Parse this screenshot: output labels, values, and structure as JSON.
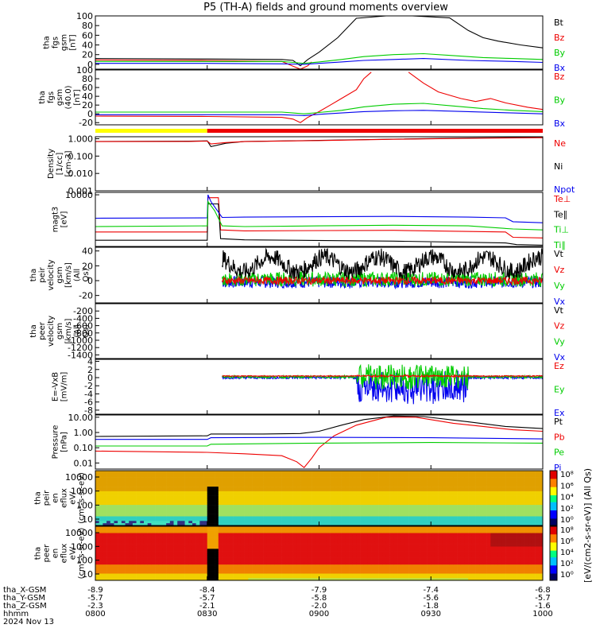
{
  "title": "P5 (TH-A) fields and ground moments overview",
  "colors": {
    "black": "#000000",
    "red": "#ee0000",
    "green": "#00cc00",
    "blue": "#0000ee",
    "yellow": "#ffff00"
  },
  "footer": {
    "row_labels": [
      "tha_X-GSM",
      "tha_Y-GSM",
      "tha_Z-GSM",
      "hhmm",
      "2024 Nov 13"
    ],
    "x_gsm": [
      "-8.9",
      "-8.4",
      "-7.9",
      "-7.4",
      "-6.8"
    ],
    "y_gsm": [
      "-5.7",
      "-5.7",
      "-5.8",
      "-5.6",
      "-5.7"
    ],
    "z_gsm": [
      "-2.3",
      "-2.1",
      "-2.0",
      "-1.8",
      "-1.6"
    ],
    "hhmm": [
      "0800",
      "0830",
      "0900",
      "0930",
      "1000"
    ]
  },
  "colorbar": {
    "label": "[eV/(cm2-s-sr-eV)] (All Qs)",
    "top_ticks": [
      "10⁸",
      "10⁶",
      "10⁴",
      "10²",
      "10⁰"
    ],
    "bottom_ticks": [
      "10⁸",
      "10⁶",
      "10⁴",
      "10²",
      "10⁰"
    ]
  },
  "chart_data": {
    "type": "line",
    "x_time": [
      "0800",
      "0830",
      "0900",
      "0930",
      "1000"
    ],
    "panels": [
      {
        "ylabel": "tha fgs gsm [nT]",
        "yticks": [
          "100",
          "80",
          "60",
          "40",
          "20",
          "0"
        ],
        "ylim": [
          -10,
          100
        ],
        "legend": [
          "Bt",
          "Bz",
          "By",
          "Bx"
        ],
        "series": [
          {
            "name": "Bt",
            "color": "black",
            "t": [
              0,
              30,
              50,
              53,
              55,
              57,
              60,
              65,
              70,
              78,
              85,
              95,
              100,
              104,
              108,
              114,
              120
            ],
            "v": [
              12,
              11,
              10,
              8,
              -3,
              10,
              25,
              55,
              95,
              140,
              140,
              96,
              70,
              55,
              48,
              40,
              34
            ]
          },
          {
            "name": "Bz",
            "color": "red",
            "t": [
              0,
              30,
              50,
              53,
              55,
              57,
              58
            ],
            "v": [
              9,
              8,
              6,
              -4,
              -10,
              -3,
              5
            ]
          },
          {
            "name": "By",
            "color": "green",
            "t": [
              0,
              30,
              50,
              53,
              56,
              60,
              66,
              72,
              80,
              88,
              96,
              104,
              112,
              120
            ],
            "v": [
              6,
              6,
              6,
              4,
              2,
              5,
              10,
              16,
              20,
              22,
              18,
              14,
              12,
              10
            ]
          },
          {
            "name": "Bx",
            "color": "blue",
            "t": [
              0,
              30,
              50,
              56,
              60,
              66,
              72,
              80,
              88,
              100,
              112,
              120
            ],
            "v": [
              2,
              2,
              1,
              0,
              2,
              5,
              8,
              10,
              12,
              8,
              6,
              4
            ]
          }
        ]
      },
      {
        "ylabel": "tha fgs gsm (40.0) [nT]",
        "yticks": [
          "100",
          "80",
          "60",
          "40",
          "20",
          "0",
          "-20"
        ],
        "ylim": [
          -25,
          100
        ],
        "legend": [
          "Bz",
          "By",
          "Bx"
        ],
        "series": [
          {
            "name": "Bz",
            "color": "red",
            "t": [
              0,
              30,
              50,
              53,
              55,
              57,
              60,
              63,
              66,
              70,
              72,
              74,
              84,
              88,
              92,
              98,
              102,
              106,
              110,
              116,
              120
            ],
            "v": [
              -5,
              -6,
              -8,
              -12,
              -20,
              -8,
              5,
              20,
              35,
              55,
              80,
              95,
              95,
              70,
              50,
              35,
              28,
              35,
              25,
              15,
              10
            ],
            "gap": [
              [
                74,
                84
              ]
            ]
          },
          {
            "name": "By",
            "color": "green",
            "t": [
              0,
              30,
              50,
              53,
              56,
              60,
              66,
              72,
              80,
              88,
              96,
              104,
              112,
              120
            ],
            "v": [
              4,
              4,
              4,
              2,
              0,
              3,
              8,
              16,
              22,
              24,
              18,
              12,
              8,
              5
            ]
          },
          {
            "name": "Bx",
            "color": "blue",
            "t": [
              0,
              30,
              50,
              56,
              60,
              66,
              72,
              80,
              88,
              100,
              112,
              120
            ],
            "v": [
              -2,
              -2,
              -2,
              -4,
              -1,
              2,
              5,
              7,
              8,
              5,
              2,
              0
            ]
          }
        ]
      },
      {
        "ylabel": "Density [1/cc] [cm-3]",
        "yticks": [
          "1.000",
          "0.100",
          "0.010",
          "0.001"
        ],
        "log": true,
        "ylim": [
          0.001,
          1.3
        ],
        "legend": [
          "Ne",
          "Ni",
          "Npot"
        ],
        "series": [
          {
            "name": "Ne",
            "color": "black",
            "t": [
              0,
              25,
              30,
              31,
              35,
              40,
              60,
              80,
              100,
              120
            ],
            "v": [
              0.7,
              0.72,
              0.75,
              0.35,
              0.55,
              0.7,
              0.8,
              0.95,
              1.1,
              1.2
            ]
          },
          {
            "name": "Ni",
            "color": "red",
            "t": [
              0,
              25,
              30,
              31,
              35,
              40,
              60,
              80,
              100,
              120
            ],
            "v": [
              0.68,
              0.7,
              0.73,
              0.5,
              0.6,
              0.68,
              0.78,
              0.93,
              1.05,
              1.15
            ]
          }
        ]
      },
      {
        "ylabel": "magt3 [eV]",
        "yticks": [
          "10000"
        ],
        "log": true,
        "ylim": [
          200,
          12000
        ],
        "legend": [
          "Te⊥",
          "Te∥",
          "Ti⊥",
          "Ti∥"
        ],
        "series": [
          {
            "name": "Te⊥",
            "color": "red",
            "t": [
              0,
              30,
              30.2,
              33,
              33.6,
              40,
              80,
              110,
              112,
              120
            ],
            "v": [
              600,
              600,
              8000,
              8000,
              700,
              650,
              680,
              600,
              400,
              380
            ]
          },
          {
            "name": "Te∥",
            "color": "black",
            "t": [
              0,
              30,
              30.2,
              33,
              33.6,
              40,
              80,
              110,
              113,
              120
            ],
            "v": [
              320,
              320,
              5000,
              5000,
              360,
              330,
              300,
              260,
              230,
              220
            ]
          },
          {
            "name": "Ti⊥",
            "color": "blue",
            "t": [
              0,
              30,
              30.2,
              31,
              34,
              40,
              60,
              80,
              100,
              110,
              112,
              120
            ],
            "v": [
              1700,
              1750,
              10000,
              6000,
              1800,
              1850,
              1900,
              1950,
              1850,
              1750,
              1300,
              1200
            ]
          },
          {
            "name": "Ti∥",
            "color": "green",
            "t": [
              0,
              30,
              30.2,
              32,
              34,
              40,
              60,
              80,
              100,
              112,
              120
            ],
            "v": [
              900,
              950,
              6000,
              3000,
              950,
              900,
              950,
              1000,
              950,
              750,
              700
            ]
          }
        ]
      },
      {
        "ylabel": "tha peir velocity gsm [km/s] (All Qs)",
        "yticks": [
          "40",
          "20",
          "0",
          "-20"
        ],
        "ylim": [
          -30,
          45
        ],
        "legend": [
          "Vt",
          "Vz",
          "Vy",
          "Vx"
        ],
        "noisy": true,
        "start": 34,
        "series": [
          {
            "name": "Vx",
            "color": "blue",
            "base": -2,
            "amp": 8
          },
          {
            "name": "Vy",
            "color": "green",
            "base": 2,
            "amp": 10
          },
          {
            "name": "Vt",
            "color": "black",
            "base": 22,
            "amp": 12,
            "wave": 10
          },
          {
            "name": "Vz",
            "color": "red",
            "base": 0,
            "amp": 5
          }
        ]
      },
      {
        "ylabel": "tha peer velocity gsm [km/s] (All Qs)",
        "yticks": [
          "-200",
          "-400",
          "-600",
          "-800",
          "-1000",
          "-1200",
          "-1400"
        ],
        "ylim": [
          -1500,
          0
        ],
        "legend": [
          "Vt",
          "Vz",
          "Vy",
          "Vx"
        ],
        "series": []
      },
      {
        "ylabel": "E=-VxB [mV/m]",
        "yticks": [
          "4",
          "2",
          "0",
          "-2",
          "-4",
          "-6",
          "-8"
        ],
        "ylim": [
          -9,
          4.5
        ],
        "legend": [
          "Ez",
          "Ey",
          "Ex"
        ],
        "noisy": true,
        "start": 34,
        "series": [
          {
            "name": "Ex",
            "color": "blue",
            "base": 0,
            "amp": 0.3,
            "burst": 4
          },
          {
            "name": "Ey",
            "color": "green",
            "base": 0.2,
            "amp": 0.3,
            "burst": 3
          },
          {
            "name": "Ez",
            "color": "red",
            "base": 0.4,
            "amp": 0.1,
            "burst": 0.2
          }
        ]
      },
      {
        "ylabel": "Pressure [nPa]",
        "yticks": [
          "10.00",
          "1.00",
          "0.10",
          "0.01"
        ],
        "log": true,
        "ylim": [
          0.004,
          14
        ],
        "legend": [
          "Pt",
          "Pb",
          "Pe",
          "Pi"
        ],
        "series": [
          {
            "name": "Pt",
            "color": "black",
            "t": [
              0,
              30,
              31,
              45,
              55,
              60,
              66,
              72,
              80,
              88,
              100,
              110,
              120
            ],
            "v": [
              0.55,
              0.6,
              0.8,
              0.8,
              0.85,
              1.2,
              3,
              7,
              12,
              11,
              5,
              2.5,
              1.8
            ]
          },
          {
            "name": "Pb",
            "color": "red",
            "t": [
              0,
              30,
              40,
              50,
              54,
              56,
              58,
              60,
              64,
              70,
              78,
              86,
              96,
              104,
              112,
              120
            ],
            "v": [
              0.06,
              0.05,
              0.04,
              0.03,
              0.012,
              0.005,
              0.02,
              0.1,
              0.6,
              3,
              10,
              10,
              4,
              2.5,
              1.5,
              1.2
            ]
          },
          {
            "name": "Pe",
            "color": "green",
            "t": [
              0,
              30,
              31,
              60,
              90,
              120
            ],
            "v": [
              0.13,
              0.13,
              0.17,
              0.2,
              0.22,
              0.2
            ]
          },
          {
            "name": "Pi",
            "color": "blue",
            "t": [
              0,
              30,
              31,
              60,
              90,
              120
            ],
            "v": [
              0.35,
              0.35,
              0.45,
              0.48,
              0.45,
              0.38
            ]
          }
        ]
      },
      {
        "ylabel": "tha peir en eflux eV/ (cm²-s-sr-eV)",
        "yticks": [
          "10000",
          "1000",
          "100",
          "10"
        ],
        "type": "heatmap",
        "legend": []
      },
      {
        "ylabel": "tha peer en eflux eV/ (cm²-s-sr-eV)",
        "yticks": [
          "10000",
          "1000",
          "100",
          "10"
        ],
        "type": "heatmap",
        "legend": []
      }
    ]
  }
}
